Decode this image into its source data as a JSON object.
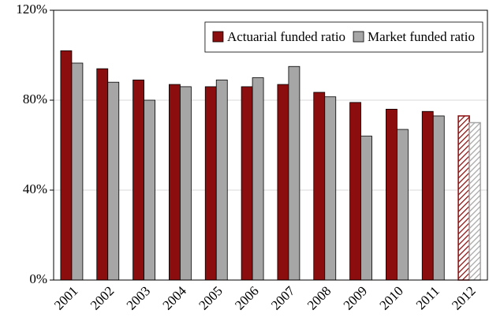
{
  "chart_data": {
    "type": "bar",
    "categories": [
      "2001",
      "2002",
      "2003",
      "2004",
      "2005",
      "2006",
      "2007",
      "2008",
      "2009",
      "2010",
      "2011",
      "2012"
    ],
    "series": [
      {
        "name": "Actuarial funded ratio",
        "color": "#8b0d0d",
        "values": [
          102,
          94,
          89,
          87,
          86,
          86,
          87,
          83.5,
          79,
          76,
          75,
          73
        ]
      },
      {
        "name": "Market funded ratio",
        "color": "#a6a6a6",
        "values": [
          96.5,
          88,
          80,
          86,
          89,
          90,
          95,
          81.5,
          64,
          67,
          73,
          70
        ]
      }
    ],
    "hatched": [
      false,
      false,
      false,
      false,
      false,
      false,
      false,
      false,
      false,
      false,
      false,
      true
    ],
    "ylim": [
      0,
      120
    ],
    "yticks": [
      {
        "value": 0,
        "label": "0%"
      },
      {
        "value": 40,
        "label": "40%"
      },
      {
        "value": 80,
        "label": "80%"
      },
      {
        "value": 120,
        "label": "120%"
      }
    ],
    "grid": true,
    "legend": "upper right"
  }
}
